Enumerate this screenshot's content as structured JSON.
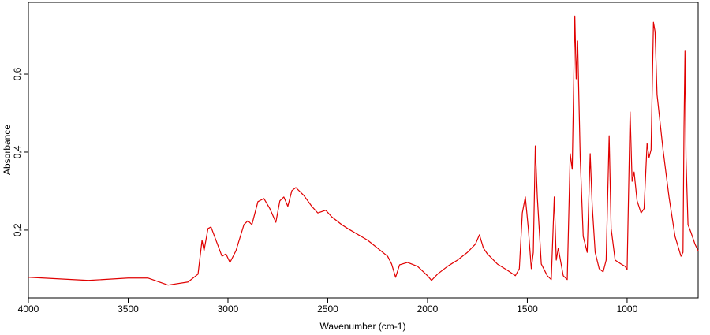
{
  "chart_data": {
    "type": "line",
    "x_label": "Wavenumber (cm-1)",
    "y_label": "Absorbance",
    "xlim": [
      4000,
      644
    ],
    "ylim": [
      0.026,
      0.784
    ],
    "xticks": [
      4000,
      3500,
      3000,
      2500,
      2000,
      1500,
      1000
    ],
    "yticks": [
      {
        "value": 0.2,
        "label": "0,2"
      },
      {
        "value": 0.4,
        "label": "0,4"
      },
      {
        "value": 0.6,
        "label": "0,6"
      }
    ],
    "series": [
      {
        "color": "#e00000",
        "x": [
          4000,
          3700,
          3500,
          3400,
          3300,
          3200,
          3150,
          3130,
          3120,
          3100,
          3085,
          3060,
          3030,
          3010,
          2990,
          2960,
          2920,
          2900,
          2880,
          2850,
          2820,
          2790,
          2760,
          2740,
          2720,
          2700,
          2680,
          2660,
          2620,
          2580,
          2550,
          2510,
          2480,
          2430,
          2400,
          2300,
          2200,
          2180,
          2160,
          2140,
          2100,
          2050,
          2000,
          1980,
          1950,
          1900,
          1850,
          1800,
          1760,
          1740,
          1720,
          1700,
          1650,
          1600,
          1560,
          1540,
          1525,
          1510,
          1495,
          1480,
          1470,
          1460,
          1450,
          1430,
          1400,
          1380,
          1365,
          1355,
          1345,
          1320,
          1300,
          1285,
          1275,
          1262,
          1255,
          1248,
          1235,
          1220,
          1200,
          1185,
          1175,
          1160,
          1140,
          1120,
          1105,
          1090,
          1080,
          1060,
          1030,
          1010,
          1000,
          985,
          975,
          965,
          950,
          930,
          915,
          900,
          890,
          880,
          868,
          860,
          850,
          820,
          790,
          760,
          730,
          720,
          715,
          710,
          705,
          695,
          680,
          660,
          644
        ],
        "values": [
          0.079,
          0.071,
          0.077,
          0.077,
          0.059,
          0.067,
          0.087,
          0.174,
          0.147,
          0.204,
          0.208,
          0.174,
          0.133,
          0.139,
          0.117,
          0.147,
          0.214,
          0.224,
          0.214,
          0.273,
          0.281,
          0.255,
          0.22,
          0.275,
          0.285,
          0.261,
          0.301,
          0.309,
          0.289,
          0.261,
          0.244,
          0.251,
          0.234,
          0.214,
          0.204,
          0.174,
          0.133,
          0.113,
          0.079,
          0.111,
          0.117,
          0.107,
          0.083,
          0.071,
          0.087,
          0.107,
          0.123,
          0.143,
          0.164,
          0.188,
          0.154,
          0.139,
          0.113,
          0.097,
          0.083,
          0.101,
          0.244,
          0.285,
          0.204,
          0.101,
          0.143,
          0.416,
          0.285,
          0.113,
          0.083,
          0.073,
          0.285,
          0.123,
          0.154,
          0.083,
          0.073,
          0.396,
          0.356,
          0.749,
          0.588,
          0.685,
          0.386,
          0.184,
          0.143,
          0.396,
          0.265,
          0.143,
          0.101,
          0.093,
          0.123,
          0.442,
          0.204,
          0.123,
          0.113,
          0.107,
          0.099,
          0.503,
          0.325,
          0.349,
          0.275,
          0.244,
          0.255,
          0.422,
          0.386,
          0.406,
          0.733,
          0.709,
          0.547,
          0.406,
          0.285,
          0.184,
          0.133,
          0.143,
          0.463,
          0.659,
          0.386,
          0.214,
          0.194,
          0.164,
          0.147
        ]
      }
    ]
  }
}
